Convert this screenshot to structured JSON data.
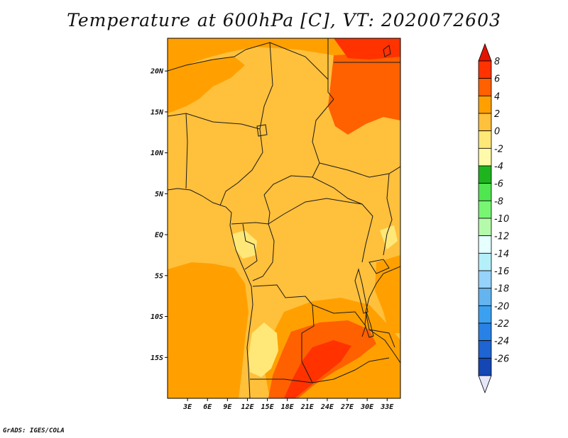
{
  "title": "Temperature at 600hPa [C], VT: 2020072603",
  "credit": "GrADS: IGES/COLA",
  "map": {
    "lon_range": [
      0,
      35
    ],
    "lat_range": [
      -20,
      24
    ],
    "y_ticks": [
      {
        "lat": 20,
        "label": "20N"
      },
      {
        "lat": 15,
        "label": "15N"
      },
      {
        "lat": 10,
        "label": "10N"
      },
      {
        "lat": 5,
        "label": "5N"
      },
      {
        "lat": 0,
        "label": "EQ"
      },
      {
        "lat": -5,
        "label": "5S"
      },
      {
        "lat": -10,
        "label": "10S"
      },
      {
        "lat": -15,
        "label": "15S"
      }
    ],
    "x_ticks": [
      {
        "lon": 3,
        "label": "3E"
      },
      {
        "lon": 6,
        "label": "6E"
      },
      {
        "lon": 9,
        "label": "9E"
      },
      {
        "lon": 12,
        "label": "12E"
      },
      {
        "lon": 15,
        "label": "15E"
      },
      {
        "lon": 18,
        "label": "18E"
      },
      {
        "lon": 21,
        "label": "21E"
      },
      {
        "lon": 24,
        "label": "24E"
      },
      {
        "lon": 27,
        "label": "27E"
      },
      {
        "lon": 30,
        "label": "30E"
      },
      {
        "lon": 33,
        "label": "33E"
      }
    ]
  },
  "colorbar": {
    "colors": [
      "#0a0a78",
      "#1446b4",
      "#1e64d2",
      "#2882e6",
      "#3ca0f0",
      "#64b4f0",
      "#96d2fa",
      "#b4f0fa",
      "#e6ffff",
      "#b4faaa",
      "#78f573",
      "#50e650",
      "#1eb41e",
      "#fffaaa",
      "#ffe878",
      "#ffc03c",
      "#ffa000",
      "#ff6000",
      "#ff3200",
      "#e11400"
    ],
    "labels": [
      "-26",
      "-24",
      "-22",
      "-20",
      "-18",
      "-16",
      "-14",
      "-12",
      "-10",
      "-8",
      "-6",
      "-4",
      "-2",
      "0",
      "2",
      "4",
      "6",
      "8"
    ]
  }
}
